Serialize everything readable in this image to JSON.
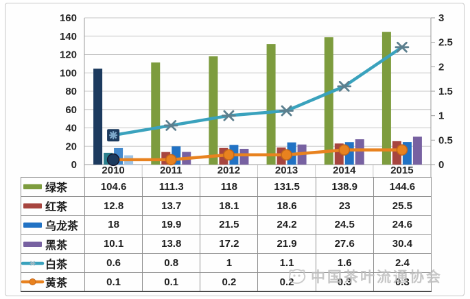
{
  "chart_data": {
    "type": "bar+line combo",
    "categories": [
      "2010",
      "2011",
      "2012",
      "2013",
      "2014",
      "2015"
    ],
    "series": [
      {
        "name": "绿茶",
        "key": "green-tea",
        "kind": "bar",
        "axis": "left",
        "color": "#7D9C3E",
        "first_point_color": "#1C3A5E",
        "values": [
          104.6,
          111.3,
          118,
          131.5,
          138.9,
          144.6
        ]
      },
      {
        "name": "红茶",
        "key": "red-tea",
        "kind": "bar",
        "axis": "left",
        "color": "#A7453F",
        "first_point_color": "#2A7F8D",
        "values": [
          12.8,
          13.7,
          18.1,
          18.6,
          23,
          25.5
        ]
      },
      {
        "name": "乌龙茶",
        "key": "oolong-tea",
        "kind": "bar",
        "axis": "left",
        "color": "#2172C4",
        "first_point_color": "#4389CC",
        "values": [
          18,
          19.9,
          21.5,
          24.2,
          24.5,
          24.6
        ]
      },
      {
        "name": "黑茶",
        "key": "dark-tea",
        "kind": "bar",
        "axis": "left",
        "color": "#7761A1",
        "first_point_color": "#9DC3E6",
        "values": [
          10.1,
          13.8,
          17.2,
          21.9,
          27.6,
          30.4
        ]
      },
      {
        "name": "白茶",
        "key": "white-tea",
        "kind": "line",
        "axis": "right",
        "marker": "star",
        "color": "#3AA2BD",
        "marker_color": "#5C7F8E",
        "first_point_color": "#1C3A5E",
        "values": [
          0.6,
          0.8,
          1,
          1.1,
          1.6,
          2.4
        ]
      },
      {
        "name": "黄茶",
        "key": "yellow-tea",
        "kind": "line",
        "axis": "right",
        "marker": "circle",
        "color": "#E8821F",
        "marker_edge": "#C2661A",
        "first_point_color": "#1C3A5E",
        "values": [
          0.1,
          0.1,
          0.2,
          0.2,
          0.3,
          0.3
        ]
      }
    ],
    "left_axis": {
      "min": 0,
      "max": 160,
      "step": 20,
      "tick_labels": [
        "0",
        "20",
        "40",
        "60",
        "80",
        "100",
        "120",
        "140",
        "160"
      ]
    },
    "right_axis": {
      "min": 0,
      "max": 3,
      "step": 0.5,
      "tick_labels": [
        "0",
        "0.5",
        "1",
        "1.5",
        "2",
        "2.5",
        "3"
      ]
    },
    "grid": true,
    "legend_position": "table-below-left-column",
    "colors": {
      "gridline": "#c6c6c6",
      "axis_line": "#9a9a9a",
      "axis_text": "#262626",
      "table_border": "#8f8f8f"
    }
  },
  "watermark": {
    "text": "中国茶叶流通协会"
  }
}
